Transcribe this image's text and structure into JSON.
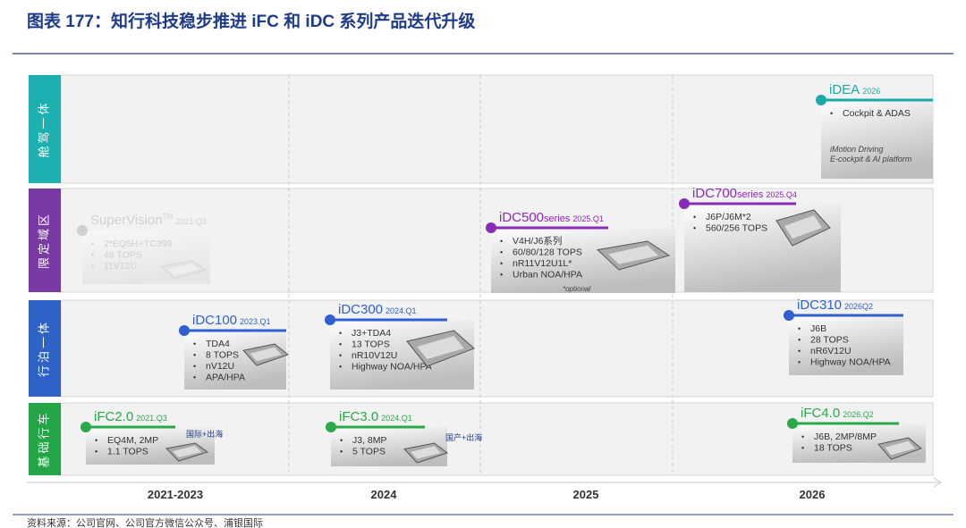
{
  "title": "图表 177：知行科技稳步推进 iFC 和 iDC 系列产品迭代升级",
  "rows": [
    {
      "label": "舱驾一体"
    },
    {
      "label": "限定域区"
    },
    {
      "label": "行泊一体"
    },
    {
      "label": "基础行车"
    }
  ],
  "years": [
    "2021-2023",
    "2024",
    "2025",
    "2026"
  ],
  "products": [
    {
      "name": "iDEA",
      "date": "2026",
      "bullets": [
        "Cockpit & ADAS"
      ],
      "notes": [
        "iMotion Driving",
        "E-cockpit & AI platform"
      ]
    },
    {
      "name": "SuperVision",
      "sup": "TM",
      "date": "2021.Q3",
      "bullets": [
        "2*EQ5H+TC399",
        "48 TOPS",
        "11V12U"
      ]
    },
    {
      "name": "iDC500",
      "series": "series",
      "date": "2025.Q1",
      "bullets": [
        "V4H/J6系列",
        "60/80/128 TOPS",
        "nR11V12U1L*",
        "Urban NOA/HPA"
      ],
      "notes": [
        "*optional"
      ]
    },
    {
      "name": "iDC700",
      "series": "series",
      "date": "2025.Q4",
      "bullets": [
        "J6P/J6M*2",
        "560/256 TOPS"
      ]
    },
    {
      "name": "iDC100",
      "date": "2023.Q1",
      "bullets": [
        "TDA4",
        "8 TOPS",
        "nV12U",
        "APA/HPA"
      ]
    },
    {
      "name": "iDC300",
      "date": "2024.Q1",
      "bullets": [
        "J3+TDA4",
        "13 TOPS",
        "nR10V12U",
        "Highway NOA/HPA"
      ]
    },
    {
      "name": "iDC310",
      "date": "2026Q2",
      "bullets": [
        "J6B",
        "28 TOPS",
        "nR6V12U",
        "Highway NOA/HPA"
      ]
    },
    {
      "name": "iFC2.0",
      "date": "2021.Q3",
      "bullets": [
        "EQ4M, 2MP",
        "1.1 TOPS"
      ],
      "tag": "国际+出海"
    },
    {
      "name": "iFC3.0",
      "date": "2024.Q1",
      "bullets": [
        "J3, 8MP",
        "5 TOPS"
      ],
      "tag": "国产+出海"
    },
    {
      "name": "iFC4.0",
      "date": "2026.Q2",
      "bullets": [
        "J6B, 2MP/8MP",
        "18 TOPS"
      ]
    }
  ],
  "source": "资料来源：公司官网、公司官方微信公众号、浦银国际"
}
